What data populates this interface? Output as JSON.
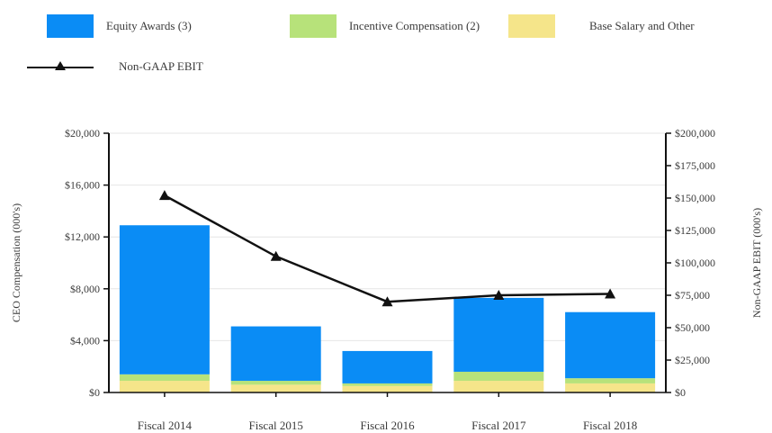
{
  "chart_data": {
    "type": "bar",
    "categories": [
      "Fiscal 2014",
      "Fiscal 2015",
      "Fiscal 2016",
      "Fiscal 2017",
      "Fiscal 2018"
    ],
    "series": [
      {
        "name": "Base Salary and Other",
        "kind": "stacked-bar",
        "color": "#f5e58a",
        "values": [
          900,
          600,
          500,
          900,
          700
        ]
      },
      {
        "name": "Incentive Compensation (2)",
        "kind": "stacked-bar",
        "color": "#b7e27a",
        "values": [
          500,
          300,
          200,
          700,
          400
        ]
      },
      {
        "name": "Equity Awards (3)",
        "kind": "stacked-bar",
        "color": "#0a8cf5",
        "values": [
          11500,
          4200,
          2500,
          5700,
          5100
        ]
      },
      {
        "name": "Non-GAAP EBIT",
        "kind": "line",
        "axis": "right",
        "color": "#111111",
        "values": [
          152000,
          105000,
          70000,
          75000,
          76000
        ]
      }
    ],
    "ylabel": "CEO Compensation (000's)",
    "ylabel_right": "Non-GAAP EBIT (000's)",
    "ylim": [
      0,
      20000
    ],
    "ylim_right": [
      0,
      200000
    ],
    "yticks": [
      "$0",
      "$4,000",
      "$8,000",
      "$12,000",
      "$16,000",
      "$20,000"
    ],
    "yticks_right": [
      "$0",
      "$25,000",
      "$50,000",
      "$75,000",
      "$100,000",
      "$125,000",
      "$150,000",
      "$175,000",
      "$200,000"
    ],
    "grid": true,
    "legend": "top"
  },
  "legend": {
    "equity": "Equity Awards (3)",
    "incentive": "Incentive Compensation (2)",
    "base": "Base Salary and Other",
    "ebit": "Non-GAAP EBIT"
  },
  "colors": {
    "equity": "#0a8cf5",
    "incentive": "#b7e27a",
    "base": "#f5e58a",
    "line": "#111111",
    "grid": "#e6e6e6",
    "axis": "#111111"
  }
}
